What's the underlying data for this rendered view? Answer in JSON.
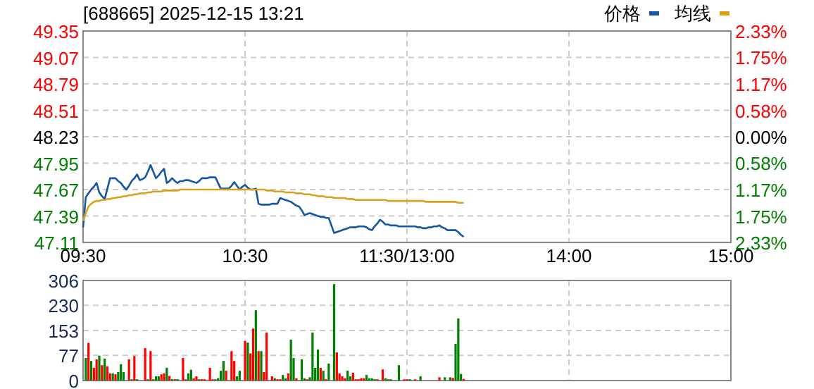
{
  "chart_data": [
    {
      "type": "line",
      "title": "[688665] 2025-12-15 13:21",
      "legend": "top right",
      "grid": true,
      "categories": [
        "09:30",
        null,
        null,
        null,
        null,
        null,
        null,
        null,
        null,
        null,
        null,
        null,
        null,
        null,
        null,
        null,
        null,
        null,
        null,
        null,
        null,
        null,
        null,
        null,
        null,
        null,
        null,
        null,
        null,
        null,
        null,
        null,
        null,
        null,
        null,
        null,
        null,
        null,
        null,
        null,
        null,
        null,
        null,
        null,
        null,
        null,
        null,
        null,
        null,
        null,
        null,
        null,
        null,
        null,
        null,
        null,
        null,
        null,
        null,
        null,
        "10:30",
        null,
        null,
        null,
        null,
        null,
        null,
        null,
        null,
        null,
        null,
        null,
        null,
        null,
        null,
        null,
        null,
        null,
        null,
        null,
        null,
        null,
        null,
        null,
        null,
        null,
        null,
        null,
        null,
        null,
        null,
        null,
        null,
        null,
        null,
        null,
        null,
        null,
        null,
        null,
        null,
        null,
        null,
        null,
        null,
        null,
        null,
        null,
        null,
        null,
        null,
        null,
        null,
        null,
        null,
        null,
        null,
        null,
        null,
        null,
        "11:30/13:00",
        null,
        null,
        null,
        null,
        null,
        null,
        null,
        null,
        null,
        null,
        null,
        null,
        null,
        null,
        null,
        null,
        null,
        null,
        null,
        null,
        null,
        null,
        null,
        null,
        null,
        null,
        null,
        null,
        null,
        null,
        null,
        null,
        null,
        null,
        null,
        null,
        null,
        null,
        null,
        null,
        null,
        null,
        null,
        null,
        null,
        null,
        null,
        null,
        null,
        null,
        null,
        null,
        null,
        null,
        null,
        null,
        null,
        null,
        null,
        "14:00",
        null,
        null,
        null,
        null,
        null,
        null,
        null,
        null,
        null,
        null,
        null,
        null,
        null,
        null,
        null,
        null,
        null,
        null,
        null,
        null,
        null,
        null,
        null,
        null,
        null,
        null,
        null,
        null,
        null,
        null,
        null,
        null,
        null,
        null,
        null,
        null,
        null,
        null,
        null,
        null,
        null,
        null,
        null,
        null,
        null,
        null,
        null,
        null,
        null,
        null,
        null,
        null,
        null,
        null,
        null,
        null,
        null,
        null,
        null,
        "15:00"
      ],
      "ylim": [
        47.11,
        49.35
      ],
      "yticks": [
        47.11,
        47.39,
        47.67,
        47.95,
        48.23,
        48.51,
        48.79,
        49.07,
        49.35
      ],
      "y2lim": [
        -2.33,
        2.33
      ],
      "y2ticks": [
        {
          "value": -2.33,
          "label": "2.33%"
        },
        {
          "value": -1.75,
          "label": "1.75%"
        },
        {
          "value": -1.17,
          "label": "1.17%"
        },
        {
          "value": -0.58,
          "label": "0.58%"
        },
        {
          "value": 0,
          "label": "0.00%"
        },
        {
          "value": 0.58,
          "label": "0.58%"
        },
        {
          "value": 1.17,
          "label": "1.17%"
        },
        {
          "value": 1.75,
          "label": "1.75%"
        },
        {
          "value": 2.33,
          "label": "2.33%"
        }
      ],
      "series": [
        {
          "name": "价格",
          "color": "#1756a3",
          "values": [
            47.27,
            47.59,
            47.63,
            47.67,
            47.7,
            47.74,
            47.64,
            47.6,
            47.57,
            47.68,
            47.79,
            47.79,
            47.79,
            47.76,
            47.74,
            47.7,
            47.67,
            47.71,
            47.76,
            47.79,
            47.83,
            47.77,
            47.78,
            47.8,
            47.86,
            47.93,
            47.86,
            47.79,
            47.82,
            47.86,
            47.89,
            47.74,
            47.76,
            47.79,
            47.76,
            47.74,
            47.76,
            47.76,
            47.77,
            47.77,
            47.76,
            47.75,
            47.74,
            47.76,
            47.79,
            47.79,
            47.79,
            47.8,
            47.8,
            47.8,
            47.74,
            47.68,
            47.68,
            47.68,
            47.68,
            47.71,
            47.75,
            47.71,
            47.67,
            47.7,
            47.72,
            47.69,
            47.67,
            47.67,
            47.68,
            47.52,
            47.51,
            47.51,
            47.51,
            47.51,
            47.52,
            47.52,
            47.52,
            47.58,
            47.57,
            47.56,
            47.55,
            47.54,
            47.52,
            47.5,
            47.49,
            47.45,
            47.4,
            47.41,
            47.42,
            47.41,
            47.4,
            47.39,
            47.38,
            47.38,
            47.37,
            47.37,
            47.29,
            47.21,
            47.22,
            47.23,
            47.24,
            47.25,
            47.26,
            47.27,
            47.27,
            47.27,
            47.28,
            47.28,
            47.28,
            47.27,
            47.25,
            47.24,
            47.28,
            47.31,
            47.35,
            47.33,
            47.3,
            47.3,
            47.29,
            47.29,
            47.29,
            47.28,
            47.28,
            47.28,
            47.28,
            47.28,
            47.28,
            47.28,
            47.27,
            47.27,
            47.26,
            47.26,
            47.27,
            47.27,
            47.28,
            47.28,
            47.29,
            47.27,
            47.26,
            47.24,
            47.24,
            47.24,
            47.24,
            47.22,
            47.19,
            47.17,
            null,
            null,
            null,
            null,
            null,
            null,
            null,
            null,
            null,
            null,
            null,
            null,
            null,
            null,
            null,
            null,
            null,
            null,
            null,
            null,
            null,
            null,
            null,
            null,
            null,
            null,
            null,
            null,
            null,
            null,
            null,
            null,
            null,
            null,
            null,
            null,
            null,
            null,
            null,
            null,
            null,
            null,
            null,
            null,
            null,
            null,
            null,
            null,
            null,
            null,
            null,
            null,
            null,
            null,
            null,
            null,
            null,
            null,
            null,
            null,
            null,
            null,
            null,
            null,
            null,
            null,
            null,
            null,
            null,
            null,
            null,
            null,
            null,
            null,
            null,
            null,
            null,
            null,
            null,
            null,
            null,
            null,
            null,
            null,
            null,
            null,
            null,
            null,
            null,
            null,
            null,
            null,
            null,
            null,
            null,
            null,
            null,
            null,
            null
          ]
        },
        {
          "name": "均线",
          "color": "#d9a21c",
          "values": [
            47.34,
            47.42,
            47.49,
            47.52,
            47.54,
            47.55,
            47.55,
            47.56,
            47.56,
            47.57,
            47.57,
            47.58,
            47.58,
            47.59,
            47.59,
            47.6,
            47.6,
            47.61,
            47.61,
            47.62,
            47.62,
            47.63,
            47.63,
            47.63,
            47.64,
            47.64,
            47.65,
            47.65,
            47.65,
            47.65,
            47.66,
            47.66,
            47.66,
            47.66,
            47.66,
            47.66,
            47.67,
            47.67,
            47.67,
            47.67,
            47.67,
            47.67,
            47.67,
            47.67,
            47.67,
            47.67,
            47.67,
            47.67,
            47.67,
            47.67,
            47.67,
            47.67,
            47.67,
            47.67,
            47.67,
            47.67,
            47.67,
            47.67,
            47.67,
            47.67,
            47.67,
            47.67,
            47.67,
            47.67,
            47.67,
            47.67,
            47.67,
            47.67,
            47.66,
            47.66,
            47.66,
            47.65,
            47.65,
            47.65,
            47.65,
            47.64,
            47.64,
            47.64,
            47.64,
            47.63,
            47.63,
            47.63,
            47.62,
            47.62,
            47.62,
            47.61,
            47.61,
            47.6,
            47.6,
            47.6,
            47.59,
            47.59,
            47.59,
            47.58,
            47.58,
            47.58,
            47.58,
            47.58,
            47.57,
            47.57,
            47.57,
            47.56,
            47.56,
            47.56,
            47.56,
            47.56,
            47.56,
            47.56,
            47.56,
            47.56,
            47.56,
            47.56,
            47.56,
            47.55,
            47.55,
            47.55,
            47.55,
            47.55,
            47.55,
            47.55,
            47.55,
            47.55,
            47.55,
            47.55,
            47.55,
            47.55,
            47.55,
            47.54,
            47.54,
            47.54,
            47.54,
            47.54,
            47.54,
            47.54,
            47.54,
            47.54,
            47.54,
            47.54,
            47.54,
            47.53,
            47.53,
            47.53,
            null,
            null,
            null,
            null,
            null,
            null,
            null,
            null,
            null,
            null,
            null,
            null,
            null,
            null,
            null,
            null,
            null,
            null,
            null,
            null,
            null,
            null,
            null,
            null,
            null,
            null,
            null,
            null,
            null,
            null,
            null,
            null,
            null,
            null,
            null,
            null,
            null,
            null,
            null,
            null,
            null,
            null,
            null,
            null,
            null,
            null,
            null,
            null,
            null,
            null,
            null,
            null,
            null,
            null,
            null,
            null,
            null,
            null,
            null,
            null,
            null,
            null,
            null,
            null,
            null,
            null,
            null,
            null,
            null,
            null,
            null,
            null,
            null,
            null,
            null,
            null,
            null,
            null,
            null,
            null,
            null,
            null,
            null,
            null,
            null,
            null,
            null,
            null,
            null,
            null,
            null,
            null,
            null,
            null,
            null,
            null,
            null,
            null,
            null
          ]
        }
      ]
    },
    {
      "type": "bar",
      "grid": true,
      "tick_labels": "y",
      "categories": [
        null,
        null,
        null,
        null,
        null,
        null,
        null,
        null,
        null,
        null,
        null,
        null,
        null,
        null,
        null,
        null,
        null,
        null,
        null,
        null,
        null,
        null,
        null,
        null,
        null,
        null,
        null,
        null,
        null,
        null,
        null,
        null,
        null,
        null,
        null,
        null,
        null,
        null,
        null,
        null,
        null,
        null,
        null,
        null,
        null,
        null,
        null,
        null,
        null,
        null,
        null,
        null,
        null,
        null,
        null,
        null,
        null,
        null,
        null,
        null,
        null,
        null,
        null,
        null,
        null,
        null,
        null,
        null,
        null,
        null,
        null,
        null,
        null,
        null,
        null,
        null,
        null,
        null,
        null,
        null,
        null,
        null,
        null,
        null,
        null,
        null,
        null,
        null,
        null,
        null,
        null,
        null,
        null,
        null,
        null,
        null,
        null,
        null,
        null,
        null,
        null,
        null,
        null,
        null,
        null,
        null,
        null,
        null,
        null,
        null,
        null,
        null,
        null,
        null,
        null,
        null,
        null,
        null,
        null,
        null,
        null,
        null,
        null,
        null,
        null,
        null,
        null,
        null,
        null,
        null,
        null,
        null,
        null,
        null,
        null,
        null,
        null,
        null,
        null,
        null,
        null,
        null,
        null,
        null,
        null,
        null,
        null,
        null,
        null,
        null,
        null,
        null,
        null,
        null,
        null,
        null,
        null,
        null,
        null,
        null,
        null,
        null,
        null,
        null,
        null,
        null,
        null,
        null,
        null,
        null,
        null,
        null,
        null,
        null,
        null,
        null,
        null,
        null,
        null,
        null,
        null,
        null,
        null,
        null,
        null,
        null,
        null,
        null,
        null,
        null,
        null,
        null,
        null,
        null,
        null,
        null,
        null,
        null,
        null,
        null,
        null,
        null,
        null,
        null,
        null,
        null,
        null,
        null,
        null,
        null,
        null,
        null,
        null,
        null,
        null,
        null,
        null,
        null,
        null,
        null,
        null,
        null,
        null,
        null,
        null,
        null,
        null,
        null,
        null,
        null,
        null,
        null,
        null,
        null,
        null,
        null,
        null,
        null,
        null,
        null,
        null
      ],
      "ylim": [
        0,
        306
      ],
      "yticks": [
        0,
        77,
        153,
        230,
        306
      ],
      "values": [
        null,
        69,
        115,
        60,
        39,
        65,
        76,
        47,
        67,
        43,
        22,
        22,
        19,
        26,
        50,
        26,
        null,
        65,
        4,
        75,
        4,
        null,
        null,
        99,
        4,
        90,
        4,
        13,
        13,
        19,
        22,
        39,
        14,
        4,
        4,
        4,
        null,
        69,
        4,
        22,
        33,
        7,
        13,
        4,
        4,
        4,
        null,
        39,
        4,
        4,
        7,
        30,
        60,
        30,
        null,
        90,
        60,
        13,
        30,
        null,
        121,
        116,
        83,
        159,
        215,
        90,
        90,
        26,
        147,
        null,
        13,
        7,
        4,
        4,
        17,
        7,
        22,
        125,
        69,
        7,
        null,
        65,
        7,
        4,
        10,
        147,
        39,
        95,
        39,
        30,
        4,
        52,
        null,
        295,
        86,
        22,
        13,
        7,
        30,
        13,
        24,
        4,
        4,
        7,
        7,
        17,
        7,
        7,
        4,
        4,
        null,
        34,
        7,
        4,
        4,
        null,
        null,
        47,
        null,
        4,
        4,
        4,
        null,
        4,
        null,
        13,
        null,
        null,
        null,
        null,
        null,
        null,
        10,
        null,
        10,
        null,
        10,
        8,
        112,
        190,
        20,
        5,
        null,
        null,
        null,
        null,
        null,
        null,
        null,
        null,
        null,
        null,
        null,
        null,
        null,
        null,
        null,
        null,
        null,
        null,
        null,
        null,
        null,
        null,
        null,
        null,
        null,
        null,
        null,
        null,
        null,
        null,
        null,
        null,
        null,
        null,
        null,
        null,
        null,
        null,
        null,
        null,
        null,
        null,
        null,
        null,
        null,
        null,
        null,
        null,
        null,
        null,
        null,
        null,
        null,
        null,
        null,
        null,
        null,
        null,
        null,
        null,
        null,
        null,
        null,
        null,
        null,
        null,
        null,
        null,
        null,
        null,
        null,
        null,
        null,
        null,
        null,
        null,
        null,
        null,
        null,
        null,
        null,
        null,
        null,
        null,
        null,
        null,
        null,
        null,
        null,
        null,
        null,
        null,
        null,
        null,
        null,
        null,
        null,
        null,
        null
      ],
      "colors": [
        null,
        "#008000",
        "#ff0000",
        "#008000",
        "#ff0000",
        "#ff0000",
        "#008000",
        "#ff0000",
        "#008000",
        "#ff0000",
        "#ff0000",
        "#008000",
        "#ff0000",
        "#008000",
        "#008000",
        "#008000",
        null,
        "#ff0000",
        "#008000",
        "#ff0000",
        "#008000",
        null,
        null,
        "#ff0000",
        "#008000",
        "#ff0000",
        "#008000",
        "#008000",
        "#008000",
        "#ff0000",
        "#ff0000",
        "#008000",
        "#ff0000",
        "#008000",
        "#ff0000",
        "#008000",
        null,
        "#ff0000",
        "#ff0000",
        "#008000",
        "#008000",
        "#ff0000",
        "#ff0000",
        "#008000",
        "#ff0000",
        "#ff0000",
        null,
        "#ff0000",
        "#ff0000",
        "#008000",
        "#008000",
        "#008000",
        "#008000",
        "#ff0000",
        null,
        "#ff0000",
        "#ff0000",
        "#008000",
        "#008000",
        null,
        "#ff0000",
        "#008000",
        "#ff0000",
        "#ff0000",
        "#008000",
        "#ff0000",
        "#008000",
        "#ff0000",
        "#ff0000",
        null,
        "#ff0000",
        "#008000",
        "#ff0000",
        "#ff0000",
        "#008000",
        "#008000",
        "#ff0000",
        "#008000",
        "#008000",
        "#ff0000",
        null,
        "#008000",
        "#008000",
        "#ff0000",
        "#008000",
        "#008000",
        "#008000",
        "#008000",
        "#ff0000",
        "#008000",
        "#ff0000",
        "#008000",
        null,
        "#008000",
        "#ff0000",
        "#ff0000",
        "#ff0000",
        "#ff0000",
        "#008000",
        "#008000",
        "#ff0000",
        "#ff0000",
        "#ff0000",
        "#ff0000",
        "#ff0000",
        "#008000",
        "#008000",
        "#008000",
        "#008000",
        "#ff0000",
        null,
        "#ff0000",
        "#008000",
        "#008000",
        "#008000",
        null,
        null,
        "#008000",
        null,
        "#ff0000",
        "#ff0000",
        "#008000",
        null,
        "#ff0000",
        null,
        "#008000",
        null,
        null,
        null,
        null,
        null,
        null,
        "#ff0000",
        null,
        "#008000",
        null,
        "#008000",
        "#ff0000",
        "#008000",
        "#008000",
        "#008000",
        "#ff0000",
        null,
        null,
        null,
        null,
        null,
        null,
        null,
        null,
        null,
        null,
        null,
        null,
        null,
        null,
        null,
        null,
        null,
        null,
        null,
        null,
        null,
        null,
        null,
        null,
        null,
        null,
        null,
        null,
        null,
        null,
        null,
        null,
        null,
        null,
        null,
        null,
        null,
        null,
        null,
        null,
        null,
        null,
        null,
        null,
        null,
        null,
        null,
        null,
        null,
        null,
        null,
        null,
        null,
        null,
        null,
        null,
        null,
        null,
        null,
        null,
        null,
        null,
        null,
        null,
        null,
        null,
        null,
        null,
        null,
        null,
        null,
        null,
        null,
        null,
        null,
        null,
        null,
        null,
        null,
        null,
        null,
        null,
        null,
        null,
        null,
        null,
        null,
        null,
        null,
        null,
        null,
        null,
        null,
        null,
        null,
        null,
        null,
        null,
        null
      ]
    }
  ]
}
